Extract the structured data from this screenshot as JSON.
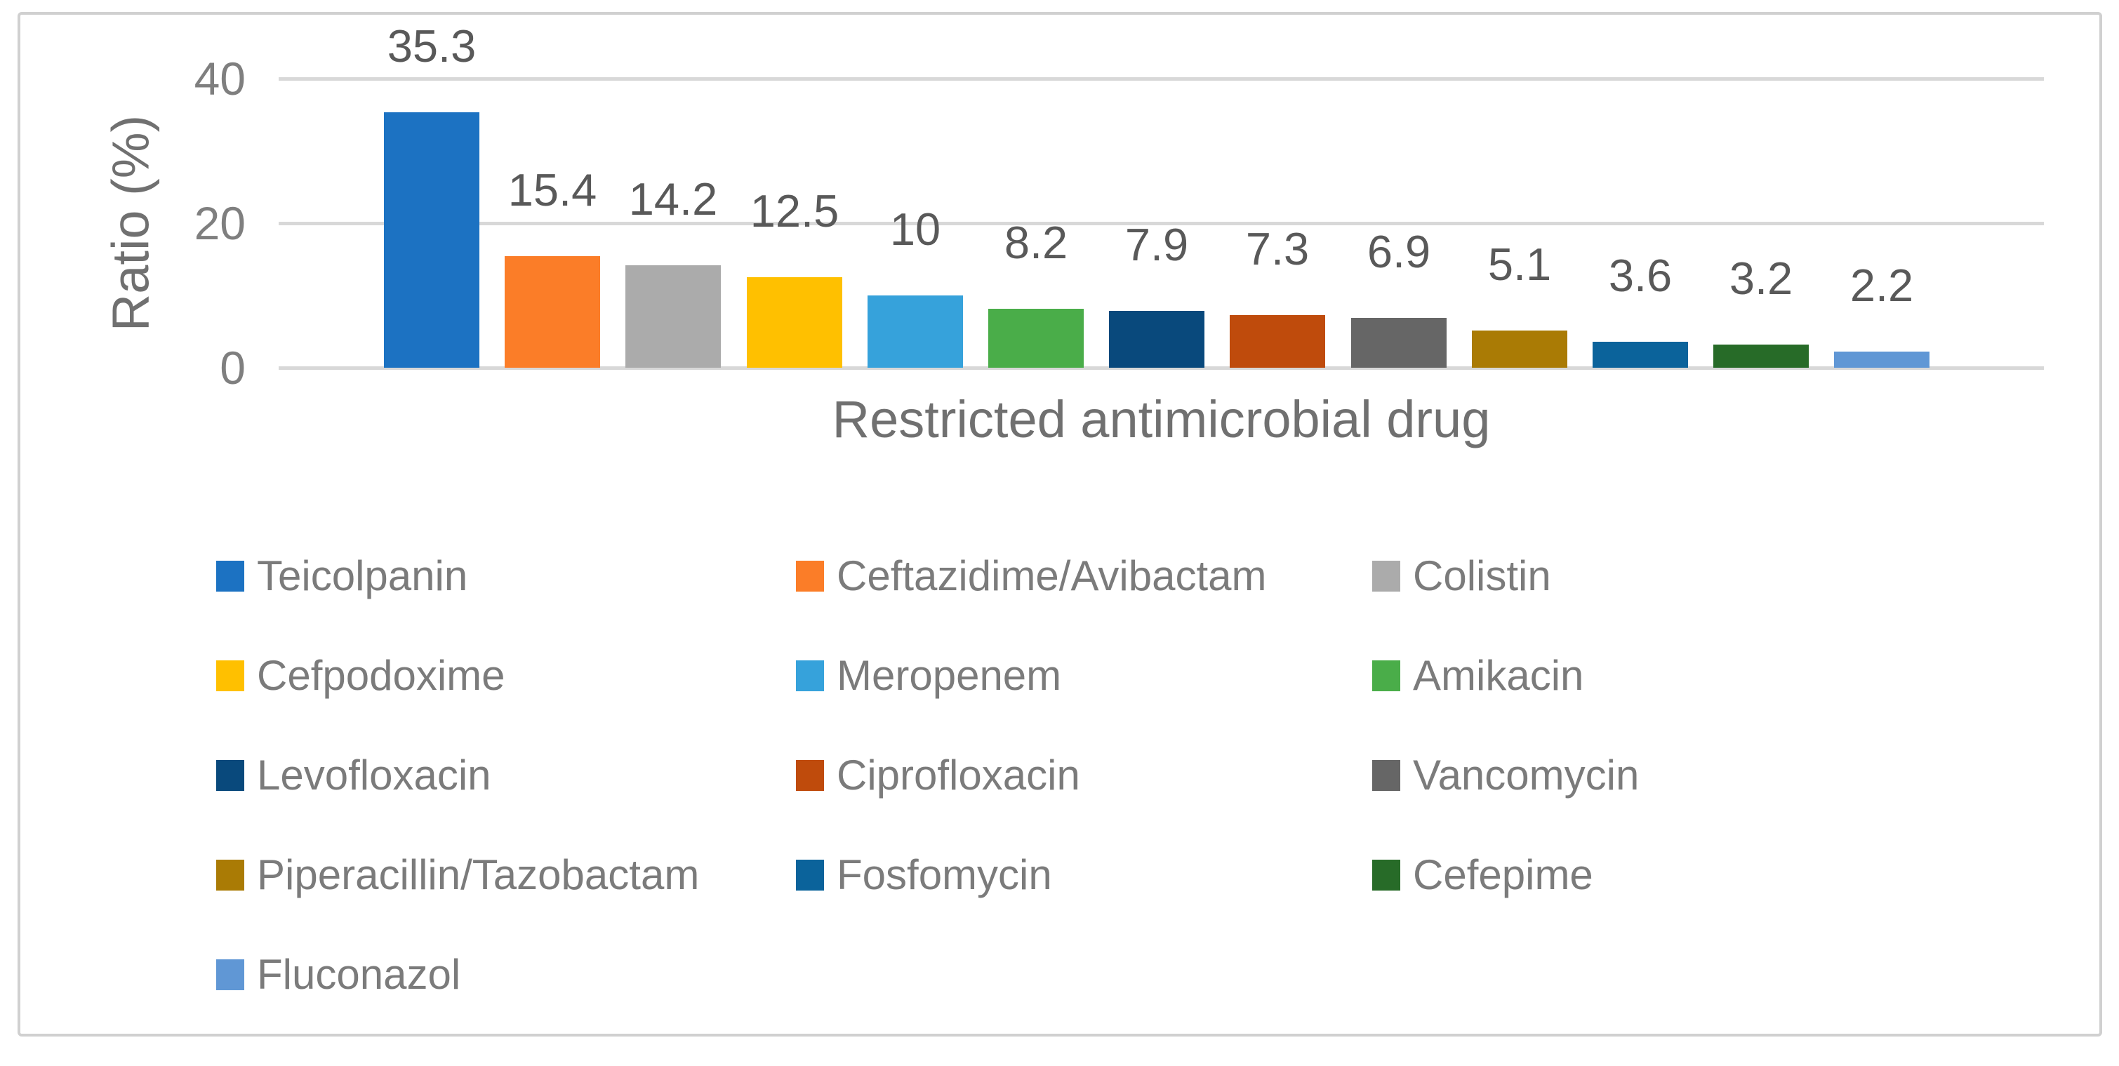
{
  "figure": {
    "background": "#ffffff",
    "border_color": "#d0d0d0"
  },
  "chart_data": {
    "type": "bar",
    "title": "",
    "xlabel": "Restricted antimicrobial drug",
    "ylabel": "Ratio (%)",
    "ylim": [
      0,
      40
    ],
    "yticks": [
      0,
      20,
      40
    ],
    "grid": true,
    "legend_position": "bottom, 3 columns, square markers",
    "categories": [
      "Teicolpanin",
      "Ceftazidime/Avibactam",
      "Colistin",
      "Cefpodoxime",
      "Meropenem",
      "Amikacin",
      "Levofloxacin",
      "Ciprofloxacin",
      "Vancomycin",
      "Piperacillin/Tazobactam",
      "Fosfomycin",
      "Cefepime",
      "Fluconazol"
    ],
    "values": [
      35.3,
      15.4,
      14.2,
      12.5,
      10,
      8.2,
      7.9,
      7.3,
      6.9,
      5.1,
      3.6,
      3.2,
      2.2
    ],
    "value_labels": [
      "35.3",
      "15.4",
      "14.2",
      "12.5",
      "10",
      "8.2",
      "7.9",
      "7.3",
      "6.9",
      "5.1",
      "3.6",
      "3.2",
      "2.2"
    ],
    "colors": [
      "#1c72c2",
      "#fb7d28",
      "#ababab",
      "#ffc000",
      "#36a2db",
      "#4aad49",
      "#09497c",
      "#bf4b0c",
      "#666666",
      "#aa7b05",
      "#0b639b",
      "#276b28",
      "#6097d5"
    ]
  },
  "styles": {
    "grid_color": "#d8d8d8",
    "tick_text_color": "#7f7f7f",
    "value_label_color": "#595959",
    "axis_title_color": "#707070",
    "legend_text_color": "#7b7b7b"
  }
}
